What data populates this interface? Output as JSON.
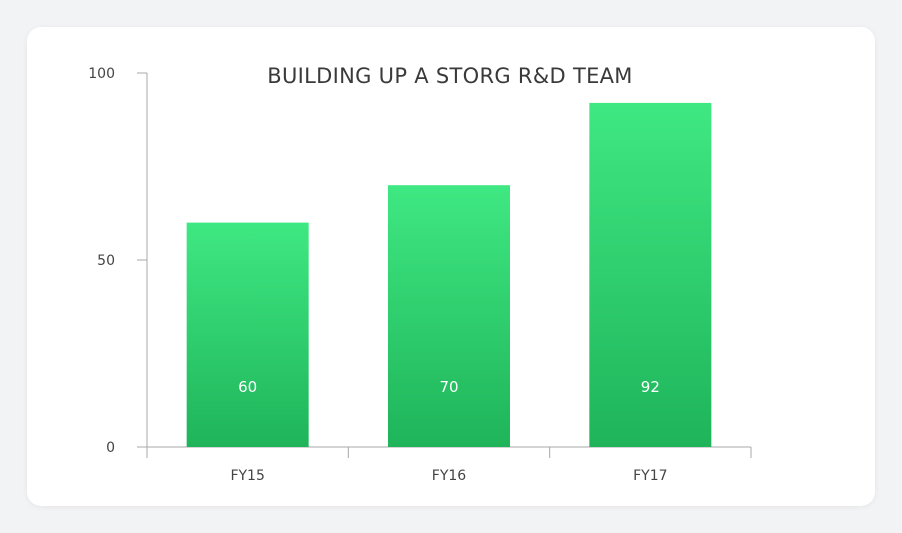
{
  "chart_data": {
    "type": "bar",
    "title": "BUILDING UP A STORG R&D TEAM",
    "categories": [
      "FY15",
      "FY16",
      "FY17"
    ],
    "values": [
      60,
      70,
      92
    ],
    "data_labels": [
      "60",
      "70",
      "92"
    ],
    "ylim": [
      0,
      100
    ],
    "yticks": [
      0,
      50,
      100
    ],
    "ytick_labels": [
      "0",
      "50",
      "100"
    ],
    "xlabel": "",
    "ylabel": "",
    "grid": false,
    "legend": "none",
    "colors": {
      "bar_top": "#3fe882",
      "bar_bottom": "#1fb45a",
      "axis": "#a8a8a8"
    }
  }
}
